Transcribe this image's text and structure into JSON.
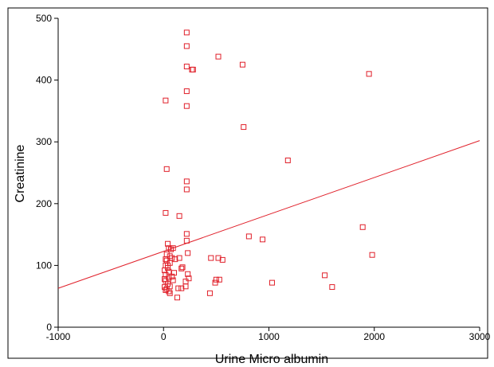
{
  "chart_data": {
    "type": "scatter",
    "title": "",
    "xlabel": "Urine Micro albumin",
    "ylabel": "Creatinine",
    "xlim": [
      -1000,
      3000
    ],
    "ylim": [
      0,
      500
    ],
    "xticks": [
      -1000,
      0,
      1000,
      2000,
      3000
    ],
    "yticks": [
      0,
      100,
      200,
      300,
      400,
      500
    ],
    "xtick_labels": [
      "-1000",
      "0",
      "1000",
      "2000",
      "3000"
    ],
    "ytick_labels": [
      "0",
      "100",
      "200",
      "300",
      "400",
      "500"
    ],
    "grid": false,
    "legend": false,
    "colors": {
      "marker": "#e0202a",
      "fit_line": "#e0202a",
      "axis": "#000000",
      "frame": "#000000"
    },
    "marker_shape": "open-square",
    "fit_line": {
      "type": "linear",
      "points": [
        [
          -1000,
          63
        ],
        [
          3000,
          302
        ]
      ]
    },
    "series": [
      {
        "points": [
          [
            220,
            477
          ],
          [
            220,
            455
          ],
          [
            220,
            422
          ],
          [
            270,
            417
          ],
          [
            280,
            417
          ],
          [
            220,
            382
          ],
          [
            220,
            358
          ],
          [
            20,
            367
          ],
          [
            520,
            438
          ],
          [
            750,
            425
          ],
          [
            760,
            324
          ],
          [
            1950,
            410
          ],
          [
            1180,
            270
          ],
          [
            30,
            256
          ],
          [
            220,
            236
          ],
          [
            220,
            223
          ],
          [
            20,
            185
          ],
          [
            150,
            180
          ],
          [
            220,
            151
          ],
          [
            220,
            140
          ],
          [
            810,
            147
          ],
          [
            940,
            142
          ],
          [
            1890,
            162
          ],
          [
            1980,
            117
          ],
          [
            40,
            135
          ],
          [
            50,
            128
          ],
          [
            70,
            126
          ],
          [
            90,
            128
          ],
          [
            30,
            118
          ],
          [
            60,
            115
          ],
          [
            80,
            112
          ],
          [
            110,
            110
          ],
          [
            150,
            112
          ],
          [
            230,
            120
          ],
          [
            450,
            112
          ],
          [
            520,
            112
          ],
          [
            560,
            109
          ],
          [
            30,
            108
          ],
          [
            60,
            104
          ],
          [
            20,
            100
          ],
          [
            40,
            96
          ],
          [
            180,
            97
          ],
          [
            170,
            95
          ],
          [
            10,
            92
          ],
          [
            50,
            90
          ],
          [
            100,
            88
          ],
          [
            80,
            82
          ],
          [
            20,
            85
          ],
          [
            50,
            80
          ],
          [
            230,
            86
          ],
          [
            240,
            79
          ],
          [
            90,
            76
          ],
          [
            210,
            74
          ],
          [
            500,
            77
          ],
          [
            530,
            77
          ],
          [
            490,
            72
          ],
          [
            1030,
            72
          ],
          [
            1530,
            84
          ],
          [
            1600,
            65
          ],
          [
            20,
            75
          ],
          [
            40,
            70
          ],
          [
            60,
            66
          ],
          [
            140,
            63
          ],
          [
            170,
            63
          ],
          [
            210,
            66
          ],
          [
            30,
            62
          ],
          [
            50,
            58
          ],
          [
            60,
            55
          ],
          [
            440,
            55
          ],
          [
            20,
            60
          ],
          [
            10,
            65
          ],
          [
            130,
            48
          ],
          [
            10,
            78
          ],
          [
            40,
            100
          ],
          [
            20,
            110
          ]
        ]
      }
    ]
  }
}
